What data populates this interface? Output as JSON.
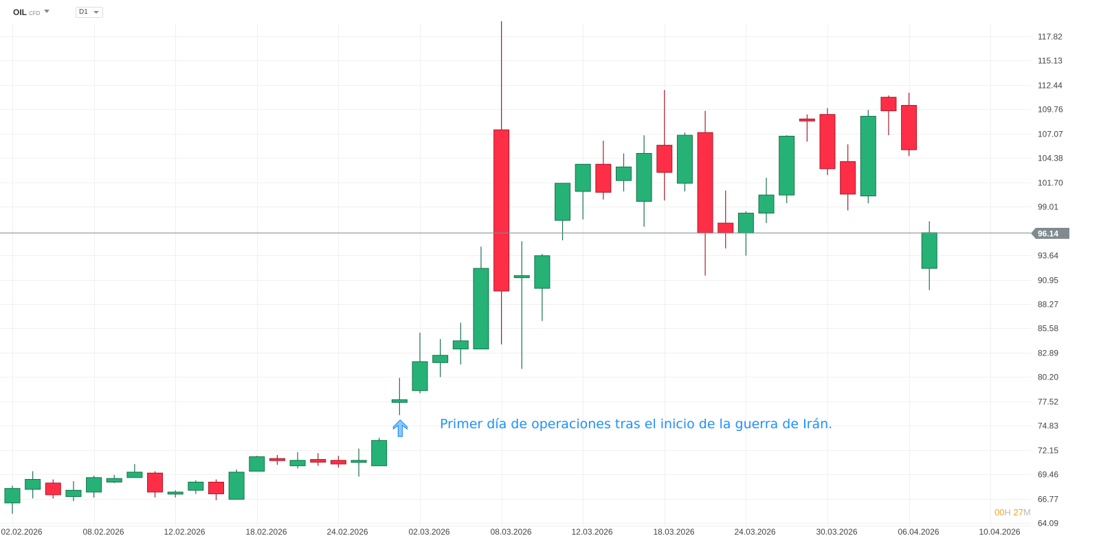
{
  "header": {
    "symbol": "OIL",
    "symbol_type": "CFD",
    "timeframe": "D1"
  },
  "annotation": {
    "text": "Primer día de operaciones tras el inicio de la guerra de Irán.",
    "arrow_color": "#1e90ff",
    "arrow_candle_index": 19
  },
  "timer": {
    "hours": "00",
    "hours_unit": "H",
    "minutes": "27",
    "minutes_unit": "M"
  },
  "current_price": {
    "label": "96.14",
    "value": 96.14,
    "color": "#808a8f"
  },
  "colors": {
    "up": "#26b276",
    "up_border": "#17714c",
    "down": "#fe2e46",
    "down_border": "#a61c2c",
    "grid": "#f0f0f0",
    "axis_text": "#444444"
  },
  "chart_data": {
    "type": "candlestick",
    "title": "OIL CFD D1",
    "xlabel": "",
    "ylabel": "",
    "ylim": [
      64.09,
      117.82
    ],
    "grid": true,
    "y_ticks": [
      "117.82",
      "115.13",
      "112.44",
      "109.76",
      "107.07",
      "104.38",
      "101.70",
      "99.01",
      "96.14",
      "93.64",
      "90.95",
      "88.27",
      "85.58",
      "82.89",
      "80.20",
      "77.52",
      "74.83",
      "72.15",
      "69.46",
      "66.77",
      "64.09"
    ],
    "y_tick_values": [
      117.82,
      115.13,
      112.44,
      109.76,
      107.07,
      104.38,
      101.7,
      99.01,
      93.64,
      90.95,
      88.27,
      85.58,
      82.89,
      80.2,
      77.52,
      74.83,
      72.15,
      69.46,
      66.77,
      64.09
    ],
    "x_ticks": [
      {
        "label": "02.02.2026",
        "index": 0
      },
      {
        "label": "08.02.2026",
        "index": 4
      },
      {
        "label": "12.02.2026",
        "index": 8
      },
      {
        "label": "18.02.2026",
        "index": 12
      },
      {
        "label": "24.02.2026",
        "index": 16
      },
      {
        "label": "02.03.2026",
        "index": 20
      },
      {
        "label": "08.03.2026",
        "index": 24
      },
      {
        "label": "12.03.2026",
        "index": 28
      },
      {
        "label": "18.03.2026",
        "index": 32
      },
      {
        "label": "24.03.2026",
        "index": 36
      },
      {
        "label": "30.03.2026",
        "index": 40
      },
      {
        "label": "06.04.2026",
        "index": 44
      },
      {
        "label": "10.04.2026",
        "index": 48
      }
    ],
    "candles": [
      {
        "i": 0,
        "o": 66.3,
        "h": 68.2,
        "l": 65.1,
        "c": 67.9
      },
      {
        "i": 1,
        "o": 67.8,
        "h": 69.8,
        "l": 66.8,
        "c": 68.9
      },
      {
        "i": 2,
        "o": 68.5,
        "h": 68.9,
        "l": 66.8,
        "c": 67.2
      },
      {
        "i": 3,
        "o": 67.0,
        "h": 68.7,
        "l": 66.5,
        "c": 67.7
      },
      {
        "i": 4,
        "o": 67.5,
        "h": 69.3,
        "l": 66.9,
        "c": 69.1
      },
      {
        "i": 5,
        "o": 68.6,
        "h": 69.4,
        "l": 68.5,
        "c": 69.0
      },
      {
        "i": 6,
        "o": 69.1,
        "h": 70.6,
        "l": 69.1,
        "c": 69.7
      },
      {
        "i": 7,
        "o": 69.6,
        "h": 69.8,
        "l": 66.9,
        "c": 67.5
      },
      {
        "i": 8,
        "o": 67.3,
        "h": 67.7,
        "l": 66.9,
        "c": 67.5
      },
      {
        "i": 9,
        "o": 67.7,
        "h": 68.8,
        "l": 67.3,
        "c": 68.6
      },
      {
        "i": 10,
        "o": 68.6,
        "h": 68.9,
        "l": 66.6,
        "c": 67.3
      },
      {
        "i": 11,
        "o": 66.7,
        "h": 70.0,
        "l": 66.7,
        "c": 69.7
      },
      {
        "i": 12,
        "o": 69.8,
        "h": 71.5,
        "l": 69.8,
        "c": 71.4
      },
      {
        "i": 13,
        "o": 71.2,
        "h": 71.6,
        "l": 70.5,
        "c": 71.0
      },
      {
        "i": 14,
        "o": 70.4,
        "h": 71.9,
        "l": 70.1,
        "c": 71.0
      },
      {
        "i": 15,
        "o": 71.1,
        "h": 71.8,
        "l": 70.4,
        "c": 70.8
      },
      {
        "i": 16,
        "o": 71.0,
        "h": 71.5,
        "l": 70.2,
        "c": 70.6
      },
      {
        "i": 17,
        "o": 70.8,
        "h": 72.3,
        "l": 69.2,
        "c": 71.0
      },
      {
        "i": 18,
        "o": 70.4,
        "h": 73.5,
        "l": 70.4,
        "c": 73.2
      },
      {
        "i": 19,
        "o": 77.4,
        "h": 80.1,
        "l": 76.0,
        "c": 77.7
      },
      {
        "i": 20,
        "o": 78.7,
        "h": 85.1,
        "l": 78.4,
        "c": 81.9
      },
      {
        "i": 21,
        "o": 81.8,
        "h": 84.4,
        "l": 80.2,
        "c": 82.6
      },
      {
        "i": 22,
        "o": 83.3,
        "h": 86.2,
        "l": 81.6,
        "c": 84.2
      },
      {
        "i": 23,
        "o": 83.3,
        "h": 94.6,
        "l": 83.3,
        "c": 92.2
      },
      {
        "i": 24,
        "o": 107.5,
        "h": 119.5,
        "l": 83.8,
        "c": 89.7
      },
      {
        "i": 25,
        "o": 91.3,
        "h": 95.2,
        "l": 81.1,
        "c": 91.4
      },
      {
        "i": 26,
        "o": 90.0,
        "h": 93.8,
        "l": 86.4,
        "c": 93.6
      },
      {
        "i": 27,
        "o": 97.5,
        "h": 101.6,
        "l": 95.3,
        "c": 101.6
      },
      {
        "i": 28,
        "o": 100.7,
        "h": 103.7,
        "l": 97.6,
        "c": 103.7
      },
      {
        "i": 29,
        "o": 103.7,
        "h": 106.3,
        "l": 99.8,
        "c": 100.6
      },
      {
        "i": 30,
        "o": 101.9,
        "h": 104.9,
        "l": 100.7,
        "c": 103.4
      },
      {
        "i": 31,
        "o": 99.6,
        "h": 106.9,
        "l": 96.8,
        "c": 104.9
      },
      {
        "i": 32,
        "o": 105.8,
        "h": 111.9,
        "l": 99.7,
        "c": 102.8
      },
      {
        "i": 33,
        "o": 101.6,
        "h": 107.2,
        "l": 100.7,
        "c": 106.9
      },
      {
        "i": 34,
        "o": 107.2,
        "h": 109.6,
        "l": 91.4,
        "c": 96.1
      },
      {
        "i": 35,
        "o": 97.2,
        "h": 100.8,
        "l": 94.4,
        "c": 96.1
      },
      {
        "i": 36,
        "o": 96.1,
        "h": 98.5,
        "l": 93.6,
        "c": 98.3
      },
      {
        "i": 37,
        "o": 98.3,
        "h": 102.2,
        "l": 97.2,
        "c": 100.3
      },
      {
        "i": 38,
        "o": 100.3,
        "h": 106.9,
        "l": 99.4,
        "c": 106.8
      },
      {
        "i": 39,
        "o": 108.7,
        "h": 109.2,
        "l": 106.2,
        "c": 108.5
      },
      {
        "i": 40,
        "o": 109.2,
        "h": 109.9,
        "l": 102.5,
        "c": 103.2
      },
      {
        "i": 41,
        "o": 104.0,
        "h": 105.9,
        "l": 98.6,
        "c": 100.4
      },
      {
        "i": 42,
        "o": 100.2,
        "h": 109.7,
        "l": 99.4,
        "c": 109.0
      },
      {
        "i": 43,
        "o": 111.1,
        "h": 111.3,
        "l": 106.9,
        "c": 109.6
      },
      {
        "i": 44,
        "o": 110.2,
        "h": 111.6,
        "l": 104.6,
        "c": 105.3
      },
      {
        "i": 45,
        "o": 92.2,
        "h": 97.4,
        "l": 89.8,
        "c": 96.14
      }
    ]
  }
}
